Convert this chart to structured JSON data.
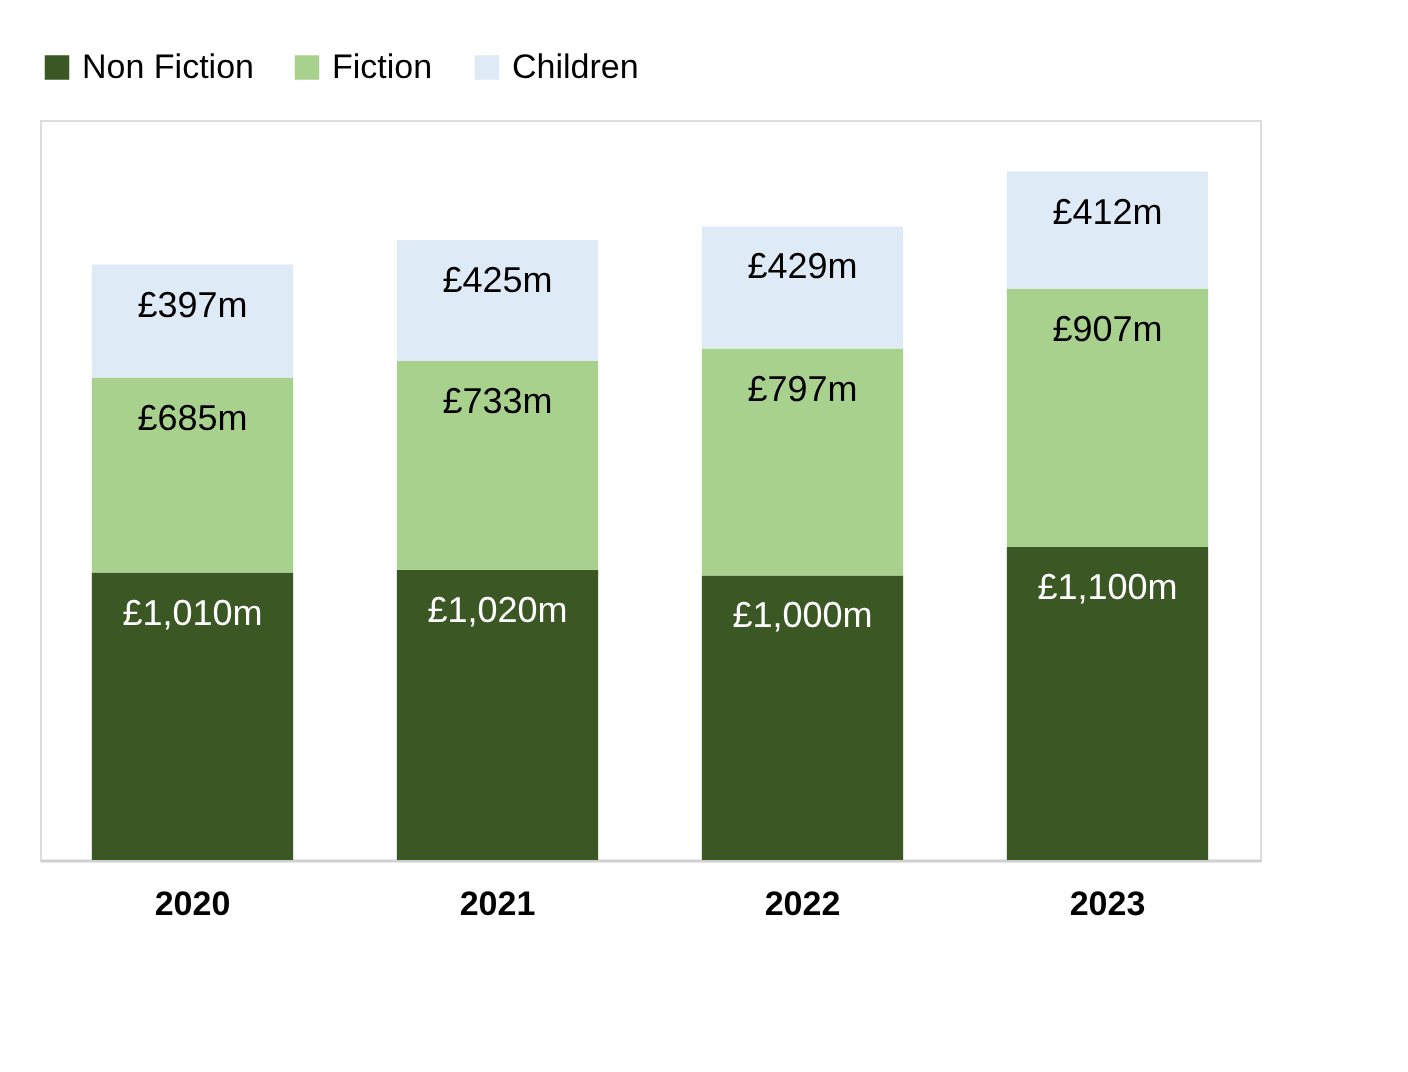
{
  "chart_data": {
    "type": "bar",
    "stacked": true,
    "categories": [
      "2020",
      "2021",
      "2022",
      "2023"
    ],
    "ylim": [
      0,
      2600
    ],
    "legend": "top",
    "grid": false,
    "tick_labels": "x",
    "series": [
      {
        "name": "Non Fiction",
        "color": "#3b5724",
        "values": [
          1010,
          1020,
          1000,
          1100
        ],
        "value_labels": [
          "£1,010m",
          "£1,020m",
          "£1,000m",
          "£1,100m"
        ]
      },
      {
        "name": "Fiction",
        "color": "#a9d18e",
        "values": [
          685,
          733,
          797,
          907
        ],
        "value_labels": [
          "£685m",
          "£733m",
          "£797m",
          "£907m"
        ]
      },
      {
        "name": "Children",
        "color": "#deeaf6",
        "values": [
          397,
          425,
          429,
          412
        ],
        "value_labels": [
          "£397m",
          "£425m",
          "£429m",
          "£412m"
        ]
      }
    ]
  }
}
